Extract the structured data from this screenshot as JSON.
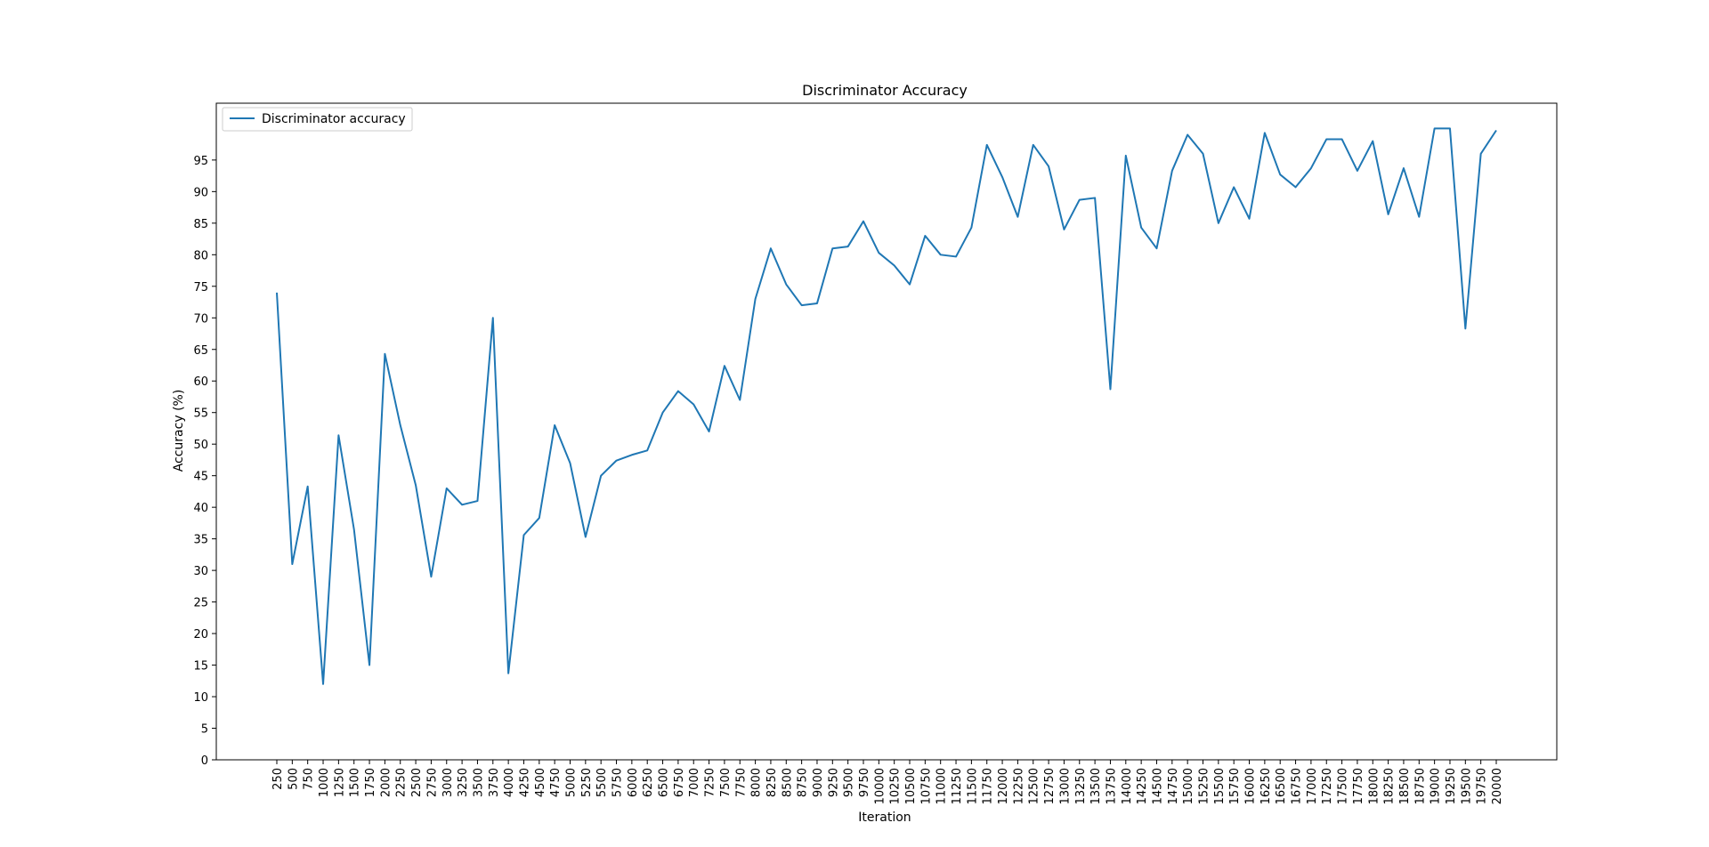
{
  "chart_data": {
    "type": "line",
    "title": "Discriminator Accuracy",
    "xlabel": "Iteration",
    "ylabel": "Accuracy (%)",
    "ylim": [
      0,
      104
    ],
    "yticks": [
      0,
      5,
      10,
      15,
      20,
      25,
      30,
      35,
      40,
      45,
      50,
      55,
      60,
      65,
      70,
      75,
      80,
      85,
      90,
      95
    ],
    "grid": false,
    "legend_position": "top-left",
    "line_color": "#1f77b4",
    "categories": [
      "250",
      "500",
      "750",
      "1000",
      "1250",
      "1500",
      "1750",
      "2000",
      "2250",
      "2500",
      "2750",
      "3000",
      "3250",
      "3500",
      "3750",
      "4000",
      "4250",
      "4500",
      "4750",
      "5000",
      "5250",
      "5500",
      "5750",
      "6000",
      "6250",
      "6500",
      "6750",
      "7000",
      "7250",
      "7500",
      "7750",
      "8000",
      "8250",
      "8500",
      "8750",
      "9000",
      "9250",
      "9500",
      "9750",
      "10000",
      "10250",
      "10500",
      "10750",
      "11000",
      "11250",
      "11500",
      "11750",
      "12000",
      "12250",
      "12500",
      "12750",
      "13000",
      "13250",
      "13500",
      "13750",
      "14000",
      "14250",
      "14500",
      "14750",
      "15000",
      "15250",
      "15500",
      "15750",
      "16000",
      "16250",
      "16500",
      "16750",
      "17000",
      "17250",
      "17500",
      "17750",
      "18000",
      "18250",
      "18500",
      "18750",
      "19000",
      "19250",
      "19500",
      "19750",
      "20000"
    ],
    "series": [
      {
        "name": "Discriminator accuracy",
        "values": [
          74.0,
          31.0,
          43.3,
          12.0,
          51.4,
          36.5,
          15.0,
          64.3,
          53.0,
          43.5,
          29.0,
          43.0,
          40.4,
          41.0,
          70.0,
          13.7,
          35.6,
          38.3,
          53.0,
          47.0,
          35.3,
          45.0,
          47.4,
          48.3,
          49.0,
          55.0,
          58.4,
          56.3,
          52.0,
          62.4,
          57.0,
          73.0,
          81.0,
          75.3,
          72.0,
          72.3,
          81.0,
          81.3,
          85.3,
          80.3,
          78.3,
          75.3,
          83.0,
          80.0,
          79.7,
          84.3,
          97.4,
          92.3,
          86.0,
          97.4,
          94.0,
          84.0,
          88.7,
          89.0,
          58.7,
          95.7,
          84.3,
          81.0,
          93.3,
          99.0,
          96.0,
          85.0,
          90.7,
          85.7,
          99.3,
          92.7,
          90.7,
          93.7,
          98.3,
          98.3,
          93.3,
          98.0,
          86.4,
          93.7,
          86.0,
          100.0,
          100.0,
          68.3,
          96.0,
          99.7
        ]
      }
    ]
  }
}
